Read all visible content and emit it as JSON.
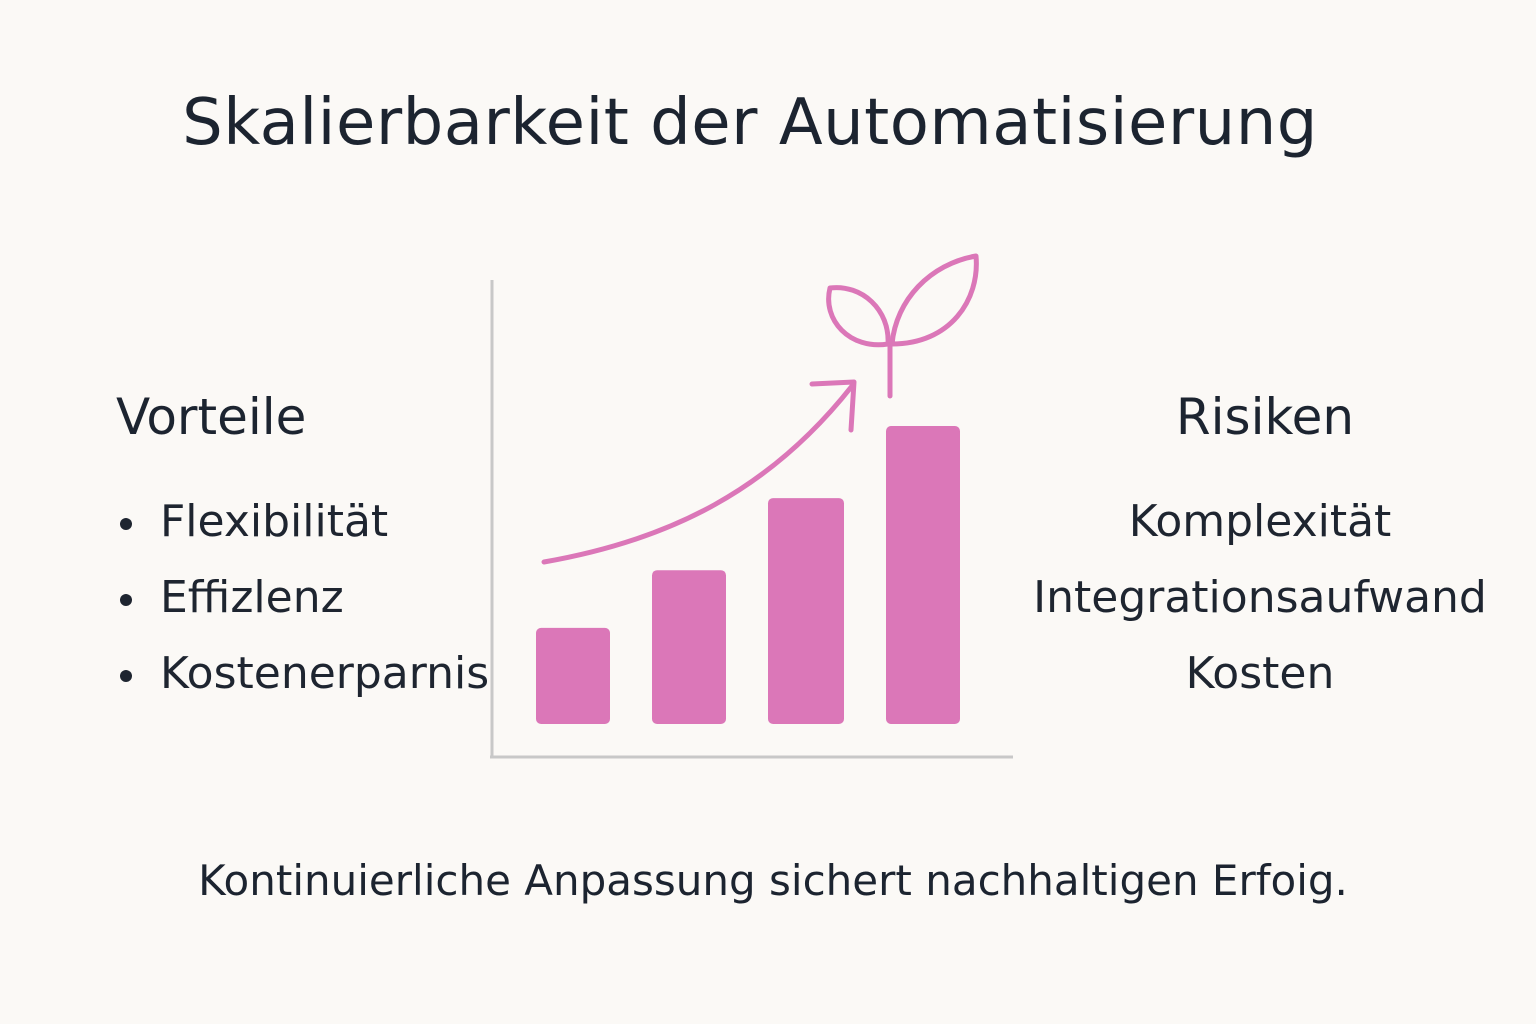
{
  "title": "Skalierbarkeit der Automatisierung",
  "vorteile": {
    "heading": "Vorteile",
    "items": [
      "Flexibilität",
      "Effizlenz",
      "Kostenerparnis"
    ]
  },
  "risiken": {
    "heading": "Risiken",
    "items": [
      "Komplexität",
      "Integrationsaufwand",
      "Kosten"
    ]
  },
  "footer": "Kontinuierliche Anpassung sichert nachhaltigen Erfoig.",
  "colors": {
    "accent": "#db77b8",
    "axis": "#c8c8c8",
    "text": "#1c2430",
    "background": "#fbf9f6"
  },
  "chart_data": {
    "type": "bar",
    "values": [
      1.0,
      1.6,
      2.35,
      3.1
    ],
    "trend": "rising-arrow",
    "decoration": "sprout-icon"
  }
}
